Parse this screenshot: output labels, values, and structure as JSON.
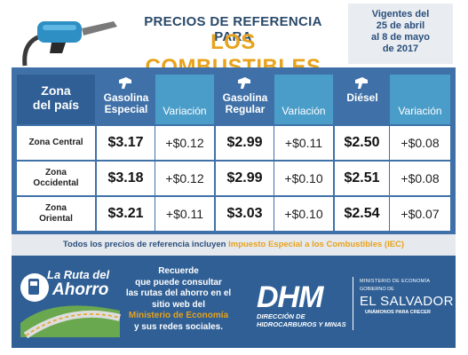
{
  "header": {
    "title_top": "PRECIOS DE REFERENCIA PARA",
    "title_main": "LOS COMBUSTIBLES",
    "validity": [
      "Vigentes del",
      "25 de abril",
      "al 8 de mayo",
      "de 2017"
    ]
  },
  "table": {
    "zona_header": [
      "Zona",
      "del país"
    ],
    "fuels": [
      {
        "name": [
          "Gasolina",
          "Especial"
        ],
        "variation_label": "Variación"
      },
      {
        "name": [
          "Gasolina",
          "Regular"
        ],
        "variation_label": "Variación"
      },
      {
        "name": [
          "Diésel",
          ""
        ],
        "variation_label": "Variación"
      }
    ],
    "rows": [
      {
        "zone": [
          "Zona Central",
          ""
        ],
        "prices": [
          "$3.17",
          "$2.99",
          "$2.50"
        ],
        "variations": [
          "+$0.12",
          "+$0.11",
          "+$0.08"
        ]
      },
      {
        "zone": [
          "Zona",
          "Occidental"
        ],
        "prices": [
          "$3.18",
          "$2.99",
          "$2.51"
        ],
        "variations": [
          "+$0.12",
          "+$0.10",
          "+$0.08"
        ]
      },
      {
        "zone": [
          "Zona",
          "Oriental"
        ],
        "prices": [
          "$3.21",
          "$3.03",
          "$2.54"
        ],
        "variations": [
          "+$0.11",
          "+$0.10",
          "+$0.07"
        ]
      }
    ]
  },
  "note": {
    "text": "Todos los precios de referencia incluyen ",
    "highlight": "Impuesto Especial a los Combustibles (IEC)"
  },
  "banner": {
    "ruta_title1": "La Ruta del",
    "ruta_title2": "Ahorro",
    "message_lines": [
      "Recuerde",
      "que puede consultar",
      "las rutas del ahorro en el",
      "sitio web del"
    ],
    "message_highlight": "Ministerio de Economía",
    "message_end": "y sus redes sociales.",
    "dhm": "DHM",
    "dhm_sub": [
      "DIRECCIÓN DE",
      "HIDROCARBUROS Y MINAS"
    ],
    "gob1": "MINISTERIO DE ECONOMÍA",
    "gob2": "GOBIERNO DE",
    "gob3": "EL SALVADOR",
    "gob4": "UNÁMONOS PARA CRECER"
  },
  "colors": {
    "panel": "#3f71a8",
    "header_dark": "#2f5f95",
    "variation_head": "#4a9dc9",
    "accent_orange": "#e8a21b",
    "navy_text": "#2a4f7c"
  },
  "icons": [
    "fuel-nozzle-icon",
    "pump-nozzle-icon",
    "car-road-icon"
  ]
}
